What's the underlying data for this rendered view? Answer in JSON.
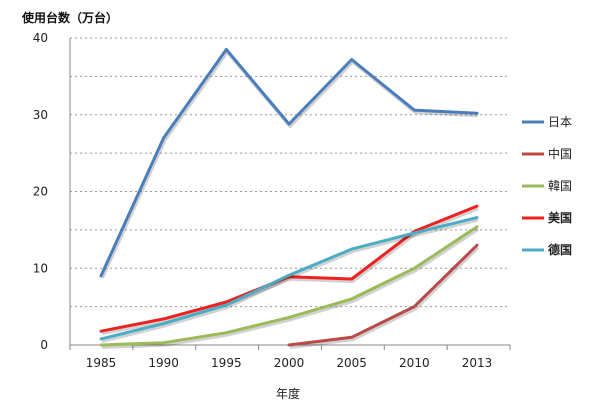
{
  "chart_data": {
    "type": "line",
    "title": "",
    "ylabel": "使用台数（万台）",
    "xlabel": "年度",
    "categories": [
      "1985",
      "1990",
      "1995",
      "2000",
      "2005",
      "2010",
      "2013"
    ],
    "ylim": [
      0,
      40
    ],
    "yticks": [
      0,
      10,
      20,
      30,
      40
    ],
    "grid": true,
    "legend_position": "right",
    "series": [
      {
        "name": "日本",
        "color": "#4a7ebb",
        "bold": false,
        "values": [
          9,
          27,
          38.5,
          28.8,
          37.2,
          30.6,
          30.2
        ]
      },
      {
        "name": "中国",
        "color": "#b94a48",
        "bold": false,
        "values": [
          null,
          null,
          null,
          0,
          1,
          5,
          13
        ]
      },
      {
        "name": "韓国",
        "color": "#9bbb59",
        "bold": false,
        "values": [
          0,
          0.3,
          1.6,
          3.6,
          6,
          10,
          15.4
        ]
      },
      {
        "name": "美国",
        "color": "#ee2020",
        "bold": true,
        "values": [
          1.8,
          3.4,
          5.6,
          8.9,
          8.6,
          14.8,
          18.1
        ]
      },
      {
        "name": "德国",
        "color": "#4bacc6",
        "bold": true,
        "values": [
          0.8,
          2.8,
          5.2,
          9.1,
          12.5,
          14.6,
          16.6
        ]
      }
    ]
  }
}
